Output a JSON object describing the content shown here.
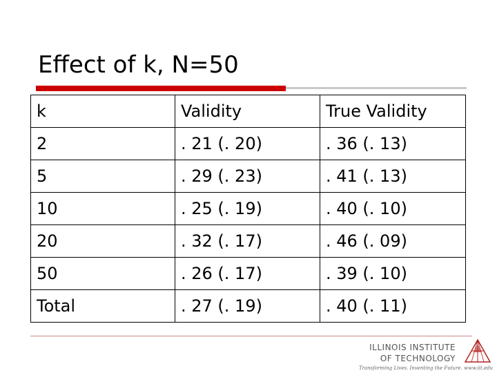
{
  "slide": {
    "title": "Effect of k, N=50"
  },
  "table": {
    "header": [
      "k",
      "Validity",
      "True Validity"
    ],
    "rows": [
      [
        "2",
        ". 21 (. 20)",
        ". 36 (. 13)"
      ],
      [
        "5",
        ". 29 (. 23)",
        ". 41 (. 13)"
      ],
      [
        "10",
        ". 25 (. 19)",
        ". 40 (. 10)"
      ],
      [
        "20",
        ". 32 (. 17)",
        ". 46 (. 09)"
      ],
      [
        "50",
        ". 26 (. 17)",
        ". 39 (. 10)"
      ],
      [
        "Total",
        ". 27 (. 19)",
        ". 40 (. 11)"
      ]
    ]
  },
  "footer": {
    "logo_line1": "ILLINOIS INSTITUTE",
    "logo_line2": "OF TECHNOLOGY",
    "logo_tagline": "Transforming Lives. Inventing the Future. www.iit.edu"
  },
  "colors": {
    "accent_red": "#cc0000",
    "rule_gray": "#c9c9c9"
  }
}
